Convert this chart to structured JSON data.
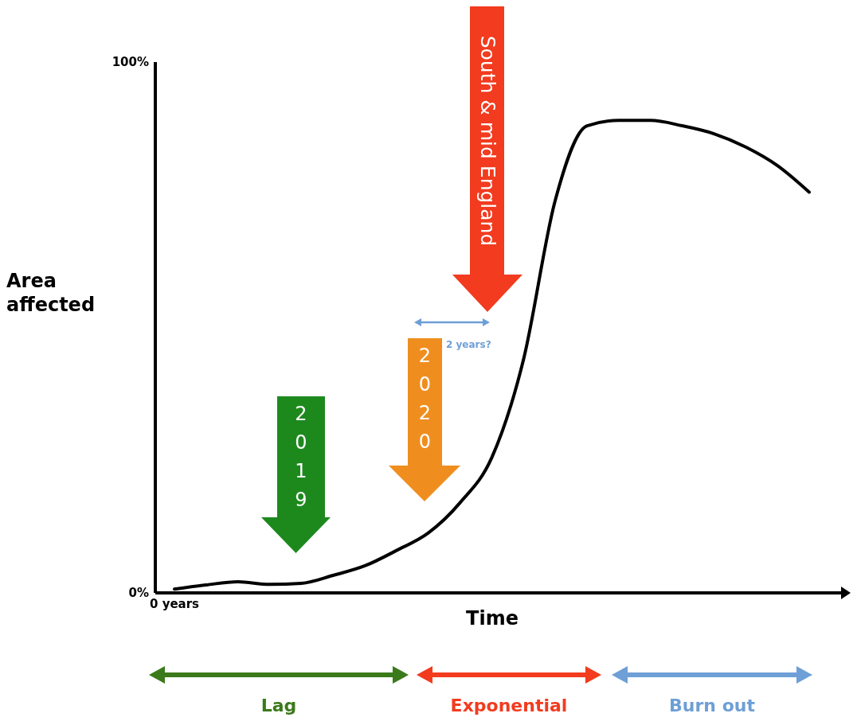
{
  "chart_data": {
    "type": "line",
    "xlabel": "Time",
    "ylabel": "Area affected",
    "categories": [
      "0 years",
      null,
      null,
      null,
      null,
      null,
      null,
      null,
      null,
      null,
      null,
      null,
      null,
      null,
      null,
      null,
      null,
      null,
      null,
      null,
      null
    ],
    "values": [
      0.7,
      1.5,
      2.1,
      1.6,
      1.8,
      3.3,
      5.1,
      8.0,
      11.3,
      17,
      25.5,
      44,
      74,
      88,
      89,
      89,
      88,
      86.5,
      84,
      80.5,
      75.5
    ],
    "color": "#000000",
    "ylim": [
      0,
      100
    ],
    "yticks": [
      {
        "value": 0,
        "label": "0%"
      },
      {
        "value": 100,
        "label": "100%"
      }
    ],
    "marker": "none",
    "line_style": "solid",
    "annotations": [
      "South & mid England",
      "2 years?",
      "2020",
      "2019",
      "Lag",
      "Exponential",
      "Burn out"
    ]
  }
}
